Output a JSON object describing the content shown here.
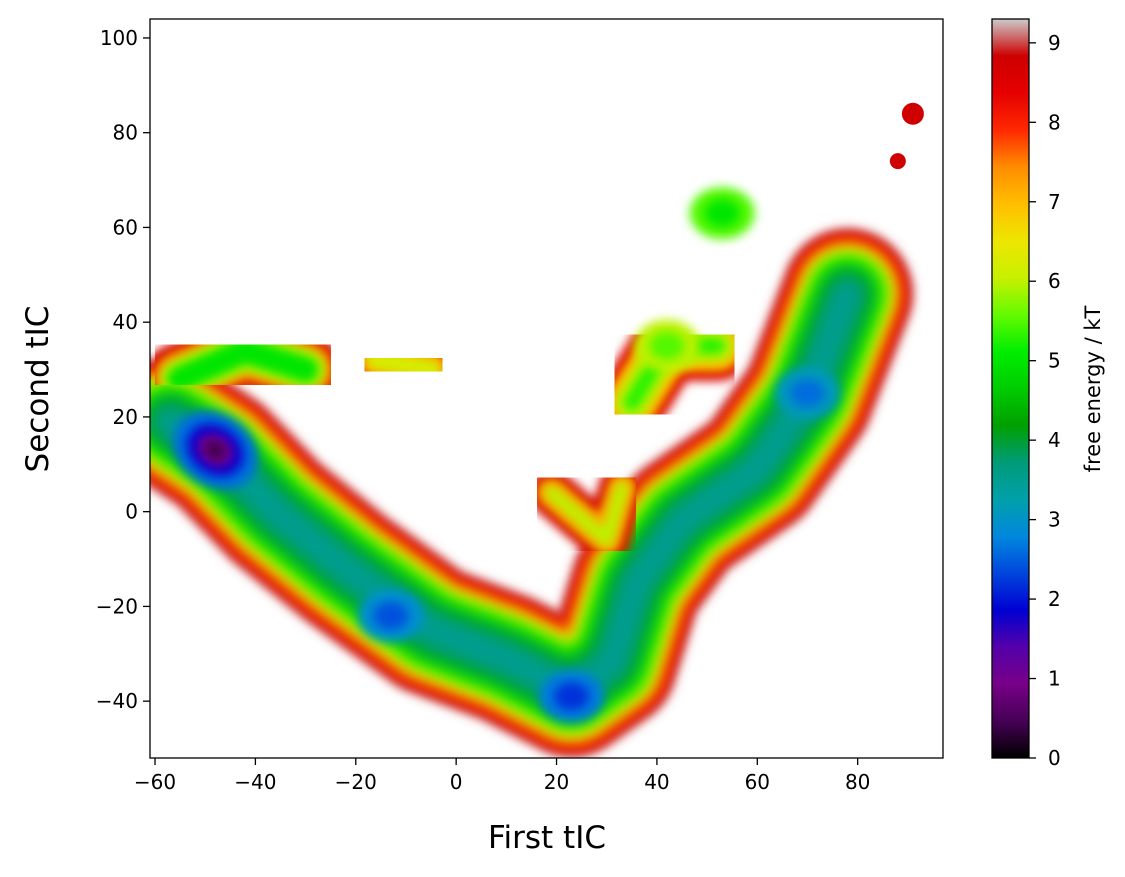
{
  "chart_data": {
    "type": "contour",
    "xlabel": "First tIC",
    "ylabel": "Second tIC",
    "xlim": [
      -61,
      97
    ],
    "ylim": [
      -52,
      104
    ],
    "xticks": [
      -60,
      -40,
      -20,
      0,
      20,
      40,
      60,
      80
    ],
    "yticks": [
      -40,
      -20,
      0,
      20,
      40,
      60,
      80,
      100
    ],
    "xtick_labels": [
      "−60",
      "−40",
      "−20",
      "0",
      "20",
      "40",
      "60",
      "80"
    ],
    "ytick_labels": [
      "−40",
      "−20",
      "0",
      "20",
      "40",
      "60",
      "80",
      "100"
    ],
    "colorbar": {
      "label": "free energy / kT",
      "range": [
        0,
        9.3
      ],
      "ticks": [
        0,
        1,
        2,
        3,
        4,
        5,
        6,
        7,
        8,
        9
      ],
      "tick_labels": [
        "0",
        "1",
        "2",
        "3",
        "4",
        "5",
        "6",
        "7",
        "8",
        "9"
      ],
      "colormap": "nipy_spectral"
    },
    "free_energy_minima": [
      {
        "x": -48,
        "y": 13,
        "value": 0.4
      },
      {
        "x": 23,
        "y": -39,
        "value": 2.2
      },
      {
        "x": -13,
        "y": -22,
        "value": 2.4
      },
      {
        "x": 70,
        "y": 25,
        "value": 2.6
      },
      {
        "x": 53,
        "y": 63,
        "value": 5.0
      },
      {
        "x": 42,
        "y": 35,
        "value": 5.5
      }
    ],
    "grid": false
  }
}
